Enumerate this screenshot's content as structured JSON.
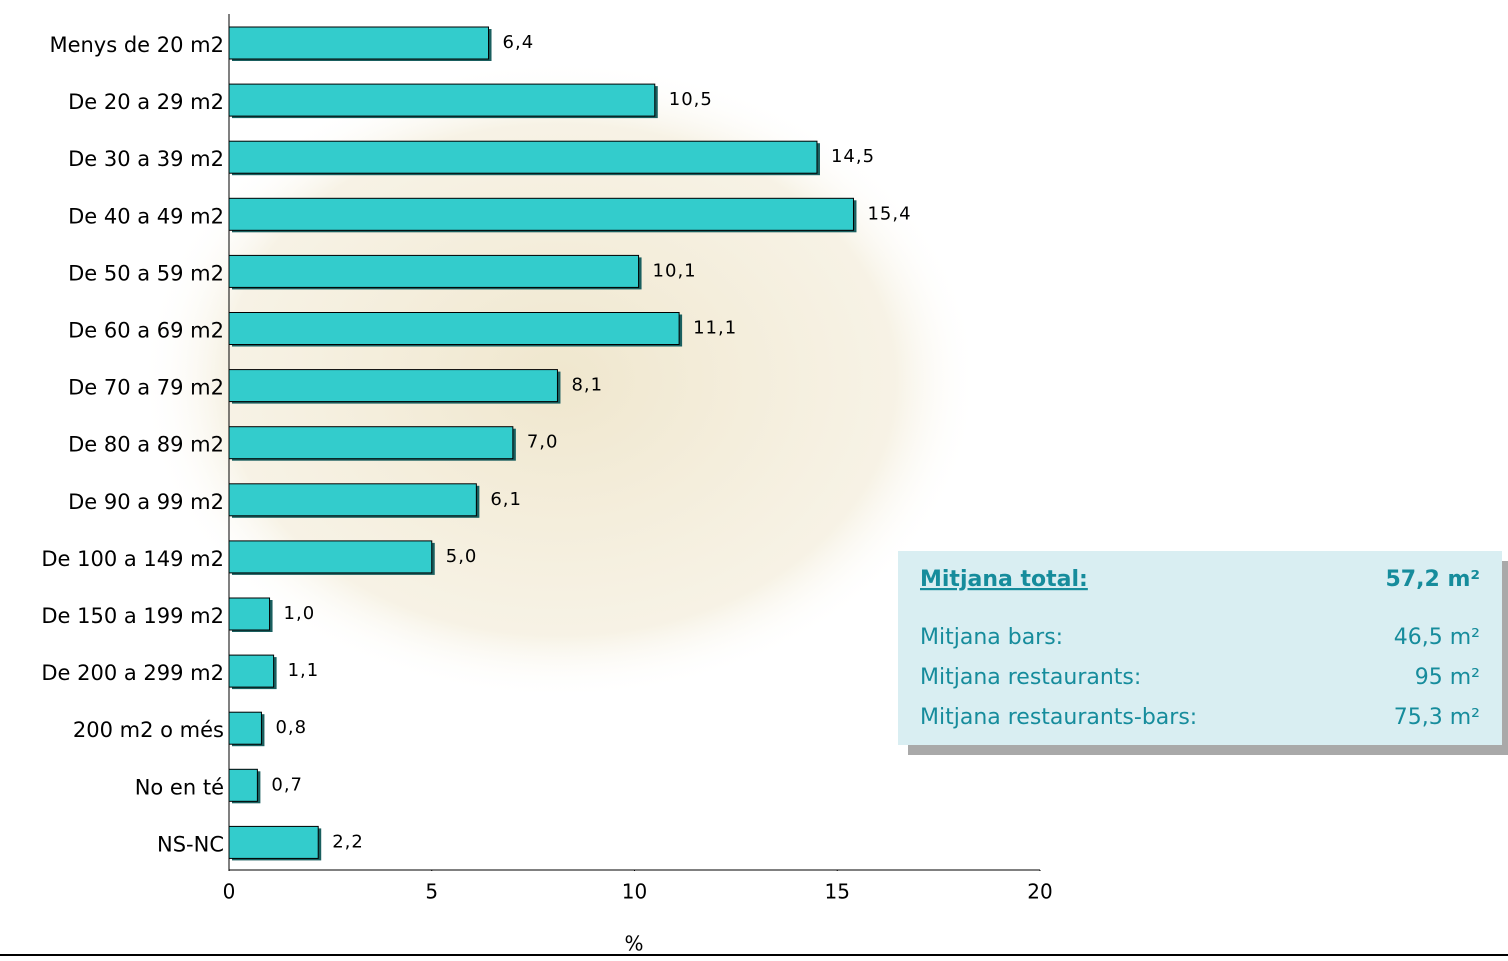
{
  "chart_data": {
    "type": "hbar",
    "categories": [
      "Menys de 20 m2",
      "De 20 a 29 m2",
      "De 30 a 39 m2",
      "De 40 a 49 m2",
      "De 50 a 59 m2",
      "De 60 a 69 m2",
      "De 70 a 79 m2",
      "De 80 a 89 m2",
      "De 90 a 99 m2",
      "De 100 a 149 m2",
      "De 150 a 199 m2",
      "De 200 a 299 m2",
      "200 m2 o més",
      "No en té",
      "NS-NC"
    ],
    "values": [
      6.4,
      10.5,
      14.5,
      15.4,
      10.1,
      11.1,
      8.1,
      7.0,
      6.1,
      5.0,
      1.0,
      1.1,
      0.8,
      0.7,
      2.2
    ],
    "value_labels": [
      "6,4",
      "10,5",
      "14,5",
      "15,4",
      "10,1",
      "11,1",
      "8,1",
      "7,0",
      "6,1",
      "5,0",
      "1,0",
      "1,1",
      "0,8",
      "0,7",
      "2,2"
    ],
    "color": "#33cccc",
    "xlabel": "%",
    "xlim": [
      0,
      20
    ],
    "xticks": [
      0,
      5,
      10,
      15,
      20
    ],
    "summary": {
      "title": "Mitjana total:",
      "title_value": "57,2 m²",
      "rows": [
        {
          "label": "Mitjana bars:",
          "value": "46,5 m²"
        },
        {
          "label": "Mitjana restaurants:",
          "value": "95 m²"
        },
        {
          "label": "Mitjana restaurants-bars:",
          "value": "75,3 m²"
        }
      ]
    }
  }
}
